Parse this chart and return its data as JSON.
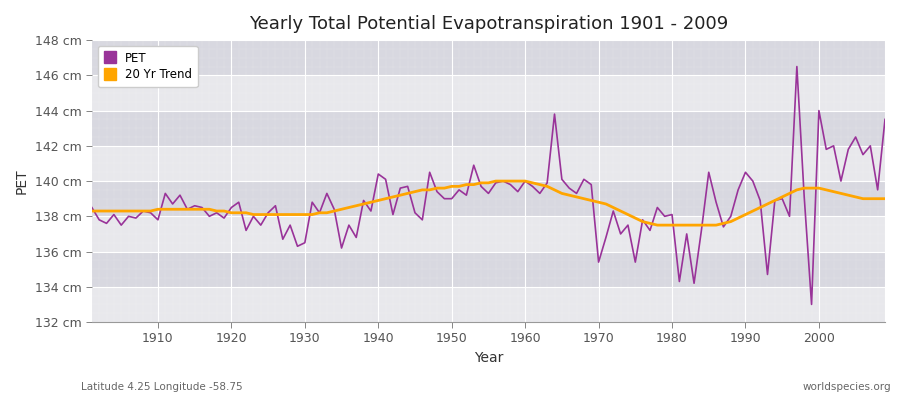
{
  "title": "Yearly Total Potential Evapotranspiration 1901 - 2009",
  "xlabel": "Year",
  "ylabel": "PET",
  "subtitle_left": "Latitude 4.25 Longitude -58.75",
  "subtitle_right": "worldspecies.org",
  "pet_color": "#993399",
  "trend_color": "#FFA500",
  "bg_color": "#e8e8ec",
  "bg_band_color": "#d8d8e0",
  "ylim": [
    132,
    148
  ],
  "yticks": [
    132,
    134,
    136,
    138,
    140,
    142,
    144,
    146,
    148
  ],
  "years": [
    1901,
    1902,
    1903,
    1904,
    1905,
    1906,
    1907,
    1908,
    1909,
    1910,
    1911,
    1912,
    1913,
    1914,
    1915,
    1916,
    1917,
    1918,
    1919,
    1920,
    1921,
    1922,
    1923,
    1924,
    1925,
    1926,
    1927,
    1928,
    1929,
    1930,
    1931,
    1932,
    1933,
    1934,
    1935,
    1936,
    1937,
    1938,
    1939,
    1940,
    1941,
    1942,
    1943,
    1944,
    1945,
    1946,
    1947,
    1948,
    1949,
    1950,
    1951,
    1952,
    1953,
    1954,
    1955,
    1956,
    1957,
    1958,
    1959,
    1960,
    1961,
    1962,
    1963,
    1964,
    1965,
    1966,
    1967,
    1968,
    1969,
    1970,
    1971,
    1972,
    1973,
    1974,
    1975,
    1976,
    1977,
    1978,
    1979,
    1980,
    1981,
    1982,
    1983,
    1984,
    1985,
    1986,
    1987,
    1988,
    1989,
    1990,
    1991,
    1992,
    1993,
    1994,
    1995,
    1996,
    1997,
    1998,
    1999,
    2000,
    2001,
    2002,
    2003,
    2004,
    2005,
    2006,
    2007,
    2008,
    2009
  ],
  "pet_values": [
    138.5,
    137.8,
    137.6,
    138.1,
    137.5,
    138.0,
    137.9,
    138.3,
    138.2,
    137.8,
    139.3,
    138.7,
    139.2,
    138.4,
    138.6,
    138.5,
    138.0,
    138.2,
    137.9,
    138.5,
    138.8,
    137.2,
    138.0,
    137.5,
    138.2,
    138.6,
    136.7,
    137.5,
    136.3,
    136.5,
    138.8,
    138.2,
    139.3,
    138.4,
    136.2,
    137.5,
    136.8,
    138.9,
    138.3,
    140.4,
    140.1,
    138.1,
    139.6,
    139.7,
    138.2,
    137.8,
    140.5,
    139.4,
    139.0,
    139.0,
    139.5,
    139.2,
    140.9,
    139.7,
    139.3,
    139.9,
    140.0,
    139.8,
    139.4,
    140.0,
    139.7,
    139.3,
    139.9,
    143.8,
    140.1,
    139.6,
    139.3,
    140.1,
    139.8,
    135.4,
    136.8,
    138.3,
    137.0,
    137.5,
    135.4,
    137.8,
    137.2,
    138.5,
    138.0,
    138.1,
    134.3,
    137.0,
    134.2,
    137.2,
    140.5,
    138.8,
    137.4,
    138.0,
    139.5,
    140.5,
    140.0,
    138.9,
    134.7,
    138.9,
    139.0,
    138.0,
    146.5,
    139.1,
    133.0,
    144.0,
    141.8,
    142.0,
    140.0,
    141.8,
    142.5,
    141.5,
    142.0,
    139.5,
    143.5
  ],
  "trend_values": [
    138.3,
    138.3,
    138.3,
    138.3,
    138.3,
    138.3,
    138.3,
    138.3,
    138.3,
    138.4,
    138.4,
    138.4,
    138.4,
    138.4,
    138.4,
    138.4,
    138.4,
    138.3,
    138.3,
    138.2,
    138.2,
    138.2,
    138.1,
    138.1,
    138.1,
    138.1,
    138.1,
    138.1,
    138.1,
    138.1,
    138.1,
    138.2,
    138.2,
    138.3,
    138.4,
    138.5,
    138.6,
    138.7,
    138.8,
    138.9,
    139.0,
    139.1,
    139.2,
    139.3,
    139.4,
    139.5,
    139.5,
    139.6,
    139.6,
    139.7,
    139.7,
    139.8,
    139.8,
    139.9,
    139.9,
    140.0,
    140.0,
    140.0,
    140.0,
    140.0,
    139.9,
    139.8,
    139.7,
    139.5,
    139.3,
    139.2,
    139.1,
    139.0,
    138.9,
    138.8,
    138.7,
    138.5,
    138.3,
    138.1,
    137.9,
    137.7,
    137.6,
    137.5,
    137.5,
    137.5,
    137.5,
    137.5,
    137.5,
    137.5,
    137.5,
    137.5,
    137.6,
    137.7,
    137.9,
    138.1,
    138.3,
    138.5,
    138.7,
    138.9,
    139.1,
    139.3,
    139.5,
    139.6,
    139.6,
    139.6,
    139.5,
    139.4,
    139.3,
    139.2,
    139.1,
    139.0,
    139.0,
    139.0,
    139.0
  ]
}
